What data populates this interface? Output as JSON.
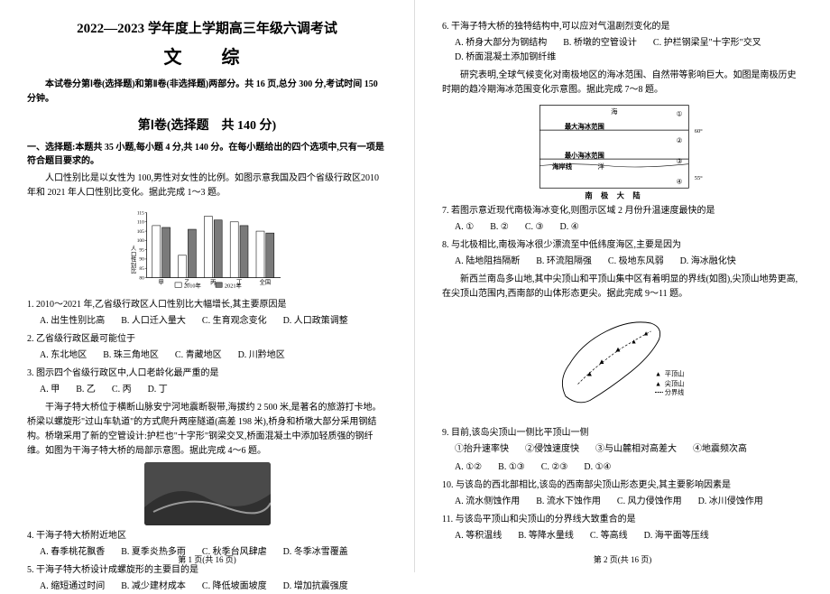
{
  "header": {
    "title": "2022—2023 学年度上学期高三年级六调考试",
    "subject": "文　综",
    "intro": "本试卷分第Ⅰ卷(选择题)和第Ⅱ卷(非选择题)两部分。共 16 页,总分 300 分,考试时间 150 分钟。",
    "sectionTitle": "第Ⅰ卷(选择题　共 140 分)",
    "heading": "一、选择题:本题共 35 小题,每小题 4 分,共 140 分。在每小题给出的四个选项中,只有一项是符合题目要求的。"
  },
  "passage1": "人口性别比是以女性为 100,男性对女性的比例。如图示意我国及四个省级行政区2010年和 2021 年人口性别比变化。据此完成 1～3 题。",
  "chart": {
    "categories": [
      "甲",
      "乙",
      "丙",
      "丁",
      "全国"
    ],
    "series2010": [
      108,
      92,
      113,
      110,
      105
    ],
    "series2021": [
      107,
      106,
      111,
      108,
      104
    ],
    "colors": {
      "2010": "#ffffff",
      "2021": "#7a7a7a",
      "border": "#000000"
    },
    "ylabel": "人口性别比",
    "ylim": [
      80,
      115
    ],
    "ystep": 5,
    "legend": [
      "2010年",
      "2021年"
    ],
    "label_fontsize": 8
  },
  "q1": {
    "stem": "1. 2010～2021 年,乙省级行政区人口性别比大幅增长,其主要原因是",
    "opts": [
      "A. 出生性别比高",
      "B. 人口迁入量大",
      "C. 生育观念变化",
      "D. 人口政策调整"
    ]
  },
  "q2": {
    "stem": "2. 乙省级行政区最可能位于",
    "opts": [
      "A. 东北地区",
      "B. 珠三角地区",
      "C. 青藏地区",
      "D. 川黔地区"
    ]
  },
  "q3": {
    "stem": "3. 图示四个省级行政区中,人口老龄化最严重的是",
    "opts": [
      "A. 甲",
      "B. 乙",
      "C. 丙",
      "D. 丁"
    ]
  },
  "passage2": "干海子特大桥位于横断山脉安宁河地震断裂带,海拔约 2 500 米,是著名的旅游打卡地。桥梁以螺旋形\"过山车轨道\"的方式爬升两座隧道(高差 198 米),桥身和桥墩大部分采用钢结构。桥墩采用了新的空管设计:护栏也\"十字形\"钢梁交叉,桥面混凝土中添加轻质强的钢纤维。如图为干海子特大桥的局部示意图。据此完成 4～6 题。",
  "photo_note": "桥梁实景照片",
  "q4": {
    "stem": "4. 干海子特大桥附近地区",
    "opts": [
      "A. 春季桃花飘香",
      "B. 夏季炎热多雨",
      "C. 秋季台风肆虐",
      "D. 冬季冰雪覆盖"
    ]
  },
  "q5": {
    "stem": "5. 干海子特大桥设计成螺旋形的主要目的是",
    "opts": [
      "A. 缩短通过时间",
      "B. 减少建材成本",
      "C. 降低坡面坡度",
      "D. 增加抗震强度"
    ]
  },
  "q6": {
    "stem": "6. 干海子特大桥的独特结构中,可以应对气温剧烈变化的是",
    "opts": [
      "A. 桥身大部分为钢结构",
      "B. 桥墩的空管设计",
      "C. 护栏钢梁呈\"十字形\"交叉",
      "D. 桥面混凝土添加钢纤维"
    ]
  },
  "passage3": "研究表明,全球气候变化对南极地区的海冰范围、自然带等影响巨大。如图是南极历史时期的趋冷期海冰范围变化示意图。据此完成 7～8 题。",
  "diagram": {
    "labels": {
      "top": "海",
      "maxIce": "最大海冰范围",
      "minIce": "最小海冰范围",
      "coast": "海岸线",
      "ocean": "洋",
      "bottom": "南 极 大 陆"
    },
    "markers": [
      "①",
      "②",
      "③",
      "④"
    ],
    "lat": [
      "60°",
      "55°"
    ],
    "line_color": "#000",
    "bg": "#fff",
    "fontsize": 8
  },
  "q7": {
    "stem": "7. 若图示意近现代南极海冰变化,则图示区域 2 月份升温速度最快的是",
    "opts": [
      "A. ①",
      "B. ②",
      "C. ③",
      "D. ④"
    ]
  },
  "q8": {
    "stem": "8. 与北极相比,南极海冰很少漂流至中低纬度海区,主要是因为",
    "opts": [
      "A. 陆地阻挡隔断",
      "B. 环流阻隔强",
      "C. 极地东风弱",
      "D. 海冰融化快"
    ]
  },
  "passage4": "新西兰南岛多山地,其中尖顶山和平顶山集中区有着明显的界线(如图),尖顶山地势更高,在尖顶山范围内,西南部的山体形态更尖。据此完成 9～11 题。",
  "mapfig": {
    "legend": [
      {
        "symbol": "▲",
        "label": "平顶山",
        "color": "#000"
      },
      {
        "symbol": "▲",
        "label": "尖顶山",
        "color": "#000"
      },
      {
        "symbol": "---",
        "label": "分界线",
        "color": "#000"
      }
    ],
    "stroke": "#000",
    "fontsize": 8
  },
  "q9": {
    "stem": "9. 目前,该岛尖顶山一侧比平顶山一侧",
    "opts": [
      "①抬升速率快",
      "②侵蚀速度快",
      "③与山麓相对高差大",
      "④地震频次高"
    ],
    "choices": [
      "A. ①②",
      "B. ①③",
      "C. ②③",
      "D. ①④"
    ]
  },
  "q10": {
    "stem": "10. 与该岛的西北部相比,该岛的西南部尖顶山形态更尖,其主要影响因素是",
    "opts": [
      "A. 流水侧蚀作用",
      "B. 流水下蚀作用",
      "C. 风力侵蚀作用",
      "D. 冰川侵蚀作用"
    ]
  },
  "q11": {
    "stem": "11. 与该岛平顶山和尖顶山的分界线大致重合的是",
    "opts": [
      "A. 等积温线",
      "B. 等降水量线",
      "C. 等高线",
      "D. 海平面等压线"
    ]
  },
  "footer1": "第 1 页(共 16 页)",
  "footer2": "第 2 页(共 16 页)"
}
